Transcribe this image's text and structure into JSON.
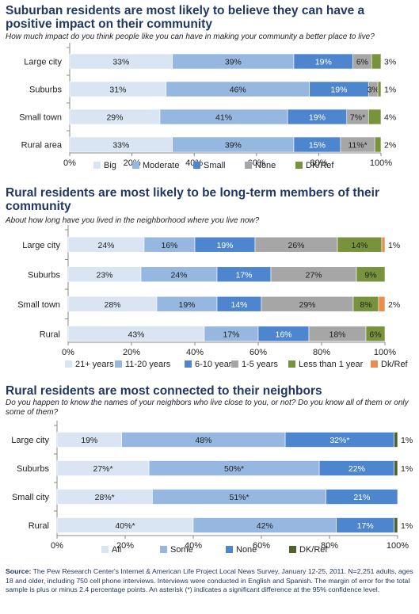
{
  "charts": [
    {
      "title": "Suburban residents are most likely to believe they can have a positive impact on their community",
      "question": "How much impact do you think people like you can have in making your community a better place to live?"
    },
    {
      "title": "Rural residents are most likely to be long-term members of their community",
      "question": "About how long have you lived in the neighborhood where you live now?"
    },
    {
      "title": "Rural residents are most connected to their neighbors",
      "question": "Do you happen to know the names of your neighbors who live close to you, or not?  Do you know all of them or only some of them?"
    }
  ],
  "source": {
    "label": "Source:",
    "text": "The Pew Research Center's Internet & American Life Project Local News Survey, January 12-25, 2011. N=2,251 adults, ages 18 and older, including 750 cell phone interviews. Interviews were conducted in English and Spanish. The margin of error for the total sample is plus or minus 2.4 percentage points.  An asterisk (*) indicates a significant difference at the 95% confidence level."
  },
  "chart_data": [
    {
      "type": "bar",
      "orientation": "horizontal",
      "stacked": true,
      "categories": [
        "Large city",
        "Suburbs",
        "Small town",
        "Rural area"
      ],
      "xlim": [
        0,
        100
      ],
      "xticks": [
        "0%",
        "20%",
        "40%",
        "60%",
        "80%",
        "100%"
      ],
      "legend_position": "bottom",
      "series": [
        {
          "name": "Big",
          "color": "#d9e5f3",
          "values": [
            33,
            31,
            29,
            33
          ],
          "labels": [
            "33%",
            "31%",
            "29%",
            "33%"
          ]
        },
        {
          "name": "Moderate",
          "color": "#95b7e0",
          "values": [
            39,
            46,
            41,
            39
          ],
          "labels": [
            "39%",
            "46%",
            "41%",
            "39%"
          ]
        },
        {
          "name": "Small",
          "color": "#4d86cf",
          "values": [
            19,
            19,
            19,
            15
          ],
          "labels": [
            "19%",
            "19%",
            "19%",
            "15%"
          ]
        },
        {
          "name": "None",
          "color": "#a6a6a6",
          "values": [
            6,
            3,
            7,
            11
          ],
          "labels": [
            "6%",
            "3%",
            "7%*",
            "11%*"
          ]
        },
        {
          "name": "DK/Ref",
          "color": "#77933c",
          "values": [
            3,
            1,
            4,
            2
          ],
          "labels": [
            "3%",
            "1%",
            "4%",
            "2%"
          ]
        }
      ]
    },
    {
      "type": "bar",
      "orientation": "horizontal",
      "stacked": true,
      "categories": [
        "Large city",
        "Suburbs",
        "Small town",
        "Rural"
      ],
      "xlim": [
        0,
        100
      ],
      "xticks": [
        "0%",
        "20%",
        "40%",
        "60%",
        "80%",
        "100%"
      ],
      "legend_position": "bottom",
      "series": [
        {
          "name": "21+ years",
          "color": "#d9e5f3",
          "values": [
            24,
            23,
            28,
            43
          ],
          "labels": [
            "24%",
            "23%",
            "28%",
            "43%"
          ]
        },
        {
          "name": "11-20 years",
          "color": "#95b7e0",
          "values": [
            16,
            24,
            19,
            17
          ],
          "labels": [
            "16%",
            "24%",
            "19%",
            "17%"
          ]
        },
        {
          "name": "6-10 years",
          "color": "#4d86cf",
          "values": [
            19,
            17,
            14,
            16
          ],
          "labels": [
            "19%",
            "17%",
            "14%",
            "16%"
          ]
        },
        {
          "name": "1-5 years",
          "color": "#a6a6a6",
          "values": [
            26,
            27,
            29,
            18
          ],
          "labels": [
            "26%",
            "27%",
            "29%",
            "18%"
          ]
        },
        {
          "name": "Less than 1 year",
          "color": "#77933c",
          "values": [
            14,
            9,
            8,
            6
          ],
          "labels": [
            "14%",
            "9%",
            "8%",
            "6%"
          ]
        },
        {
          "name": "Dk/Ref",
          "color": "#e88d4b",
          "values": [
            1,
            0,
            2,
            0
          ],
          "labels": [
            "1%",
            "",
            "2%",
            ""
          ]
        }
      ]
    },
    {
      "type": "bar",
      "orientation": "horizontal",
      "stacked": true,
      "categories": [
        "Large city",
        "Suburbs",
        "Small city",
        "Rural"
      ],
      "xlim": [
        0,
        100
      ],
      "xticks": [
        "0%",
        "20%",
        "40%",
        "60%",
        "80%",
        "100%"
      ],
      "legend_position": "bottom",
      "series": [
        {
          "name": "All",
          "color": "#d9e5f3",
          "values": [
            19,
            27,
            28,
            40
          ],
          "labels": [
            "19%",
            "27%*",
            "28%*",
            "40%*"
          ]
        },
        {
          "name": "Some",
          "color": "#95b7e0",
          "values": [
            48,
            50,
            51,
            42
          ],
          "labels": [
            "48%",
            "50%*",
            "51%*",
            "42%"
          ]
        },
        {
          "name": "None",
          "color": "#4d86cf",
          "values": [
            32,
            22,
            21,
            17
          ],
          "labels": [
            "32%*",
            "22%",
            "21%",
            "17%"
          ]
        },
        {
          "name": "DK/Ref",
          "color": "#4f6228",
          "values": [
            1,
            1,
            0,
            1
          ],
          "labels": [
            "1%",
            "1%",
            "",
            "1%"
          ]
        }
      ]
    }
  ]
}
